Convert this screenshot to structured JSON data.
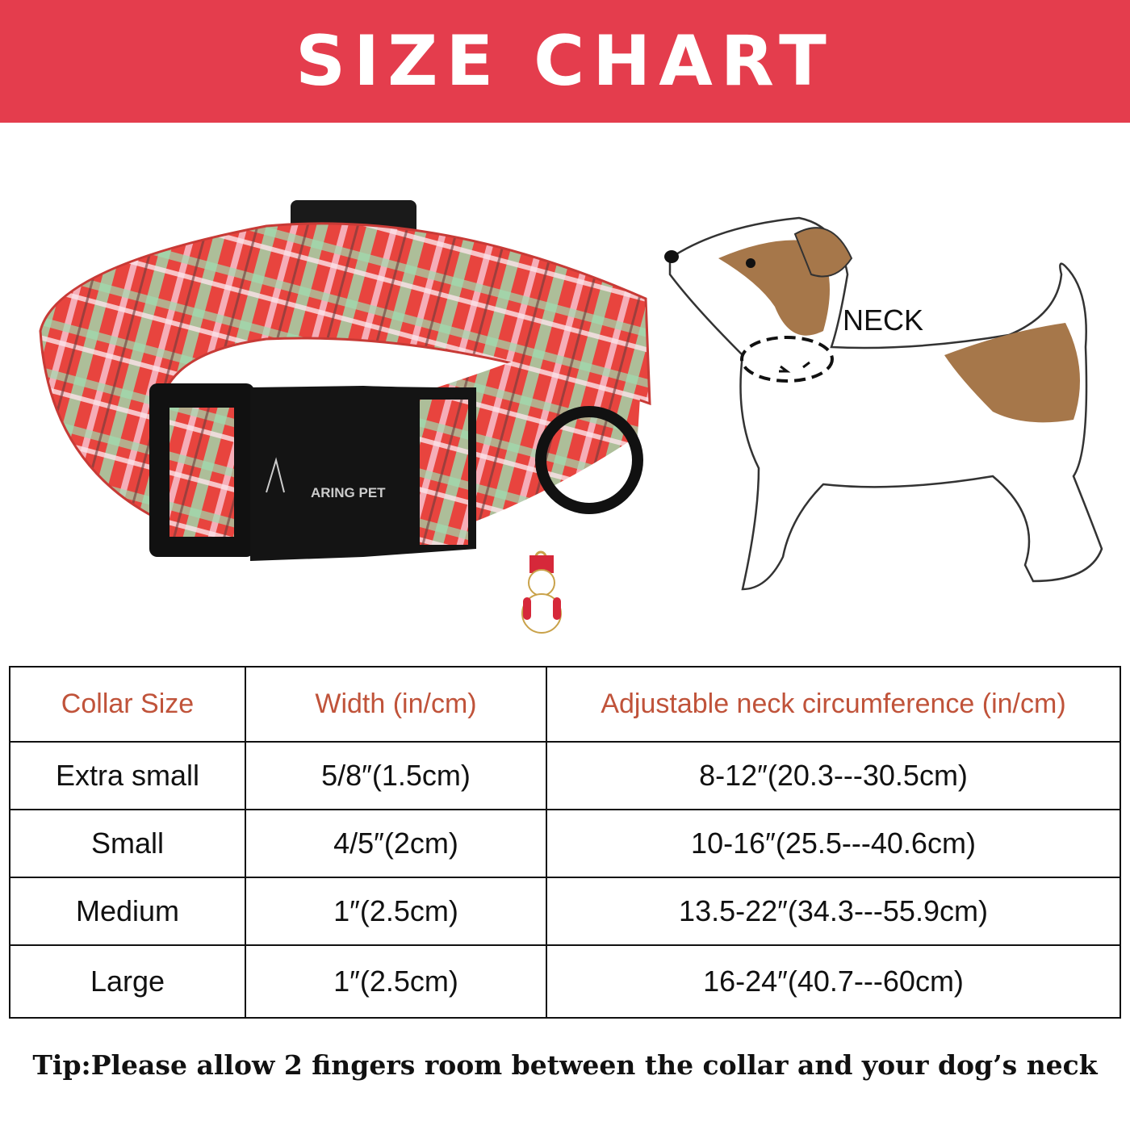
{
  "banner": {
    "title": "SIZE CHART"
  },
  "product": {
    "brand_logo_text": "ARING PET",
    "charm": "snowman-charm"
  },
  "diagram": {
    "neck_label": "NECK"
  },
  "table": {
    "headers": [
      "Collar Size",
      "Width (in/cm)",
      "Adjustable neck circumference (in/cm)"
    ],
    "rows": [
      [
        "Extra small",
        "5/8″(1.5cm)",
        "8-12″(20.3---30.5cm)"
      ],
      [
        "Small",
        "4/5″(2cm)",
        "10-16″(25.5---40.6cm)"
      ],
      [
        "Medium",
        "1″(2.5cm)",
        "13.5-22″(34.3---55.9cm)"
      ],
      [
        "Large",
        "1″(2.5cm)",
        "16-24″(40.7---60cm)"
      ]
    ]
  },
  "tip": "Tip:Please allow 2 fingers room between the collar and your dog’s neck",
  "colors": {
    "banner": "#e43d4d",
    "header_text": "#c0533a"
  }
}
